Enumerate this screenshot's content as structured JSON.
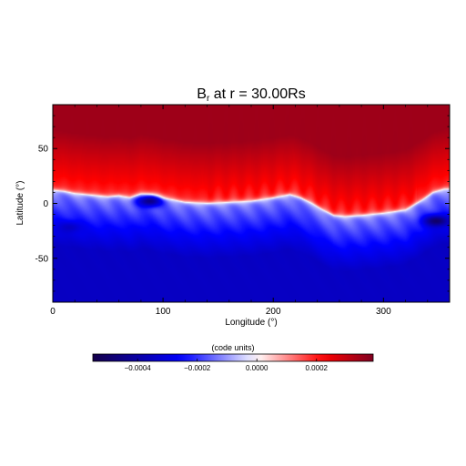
{
  "chart_data": {
    "type": "heatmap",
    "title_main": "B",
    "title_sub": "r",
    "title_rest": " at r = 30.00Rs",
    "xlabel": "Longitude (°)",
    "ylabel": "Latitude (°)",
    "xlim": [
      0,
      360
    ],
    "ylim": [
      -90,
      90
    ],
    "xticks": [
      0,
      100,
      200,
      300
    ],
    "yticks": [
      -50,
      0,
      50
    ],
    "grid": false,
    "colorbar": {
      "label": "(code units)",
      "range": [
        -0.00055,
        0.00039
      ],
      "ticks": [
        -0.0004,
        -0.0002,
        0.0,
        0.0002
      ],
      "tick_labels": [
        "−0.0004",
        "−0.0002",
        "0.0000",
        "0.0002"
      ],
      "colors": [
        "#14004a",
        "#0000ff",
        "#ffffff",
        "#ff0000",
        "#800020"
      ]
    },
    "current_sheet": {
      "longitudes": [
        0,
        10,
        20,
        30,
        40,
        50,
        60,
        70,
        80,
        90,
        100,
        110,
        120,
        140,
        160,
        180,
        200,
        215,
        225,
        235,
        245,
        255,
        265,
        280,
        300,
        320,
        335,
        345,
        355,
        360
      ],
      "latitudes": [
        12,
        11,
        9,
        8,
        7,
        6,
        7,
        5,
        8,
        7,
        4,
        3,
        1,
        0,
        1,
        2,
        5,
        8,
        5,
        0,
        -6,
        -11,
        -12,
        -11,
        -9,
        -6,
        3,
        10,
        13,
        13
      ]
    },
    "field_values": {
      "north_hemisphere": 0.00035,
      "near_sheet_north": 0.00018,
      "near_sheet_south": -0.00012,
      "south_hemisphere": -0.00035,
      "strong_negative_features": [
        {
          "lon": 88,
          "lat": 2,
          "value": -0.00045
        },
        {
          "lon": 348,
          "lat": -16,
          "value": -0.0005
        },
        {
          "lon": 15,
          "lat": -22,
          "value": -0.00035
        }
      ]
    }
  }
}
